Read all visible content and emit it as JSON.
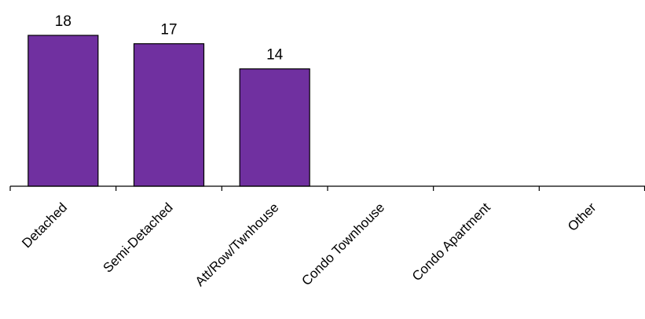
{
  "chart_data": {
    "type": "bar",
    "title": "",
    "xlabel": "",
    "ylabel": "",
    "categories": [
      "Detached",
      "Semi-Detached",
      "Att/Row/Twnhouse",
      "Condo Townhouse",
      "Condo Apartment",
      "Other"
    ],
    "values": [
      18,
      17,
      14,
      null,
      null,
      null
    ],
    "data_labels": [
      "18",
      "17",
      "14",
      "",
      "",
      ""
    ],
    "ylim": [
      0,
      18
    ],
    "grid": false,
    "legend": "none",
    "colors": {
      "bar_fill": "#7030A0",
      "bar_stroke": "#000000",
      "axis": "#000000"
    }
  }
}
